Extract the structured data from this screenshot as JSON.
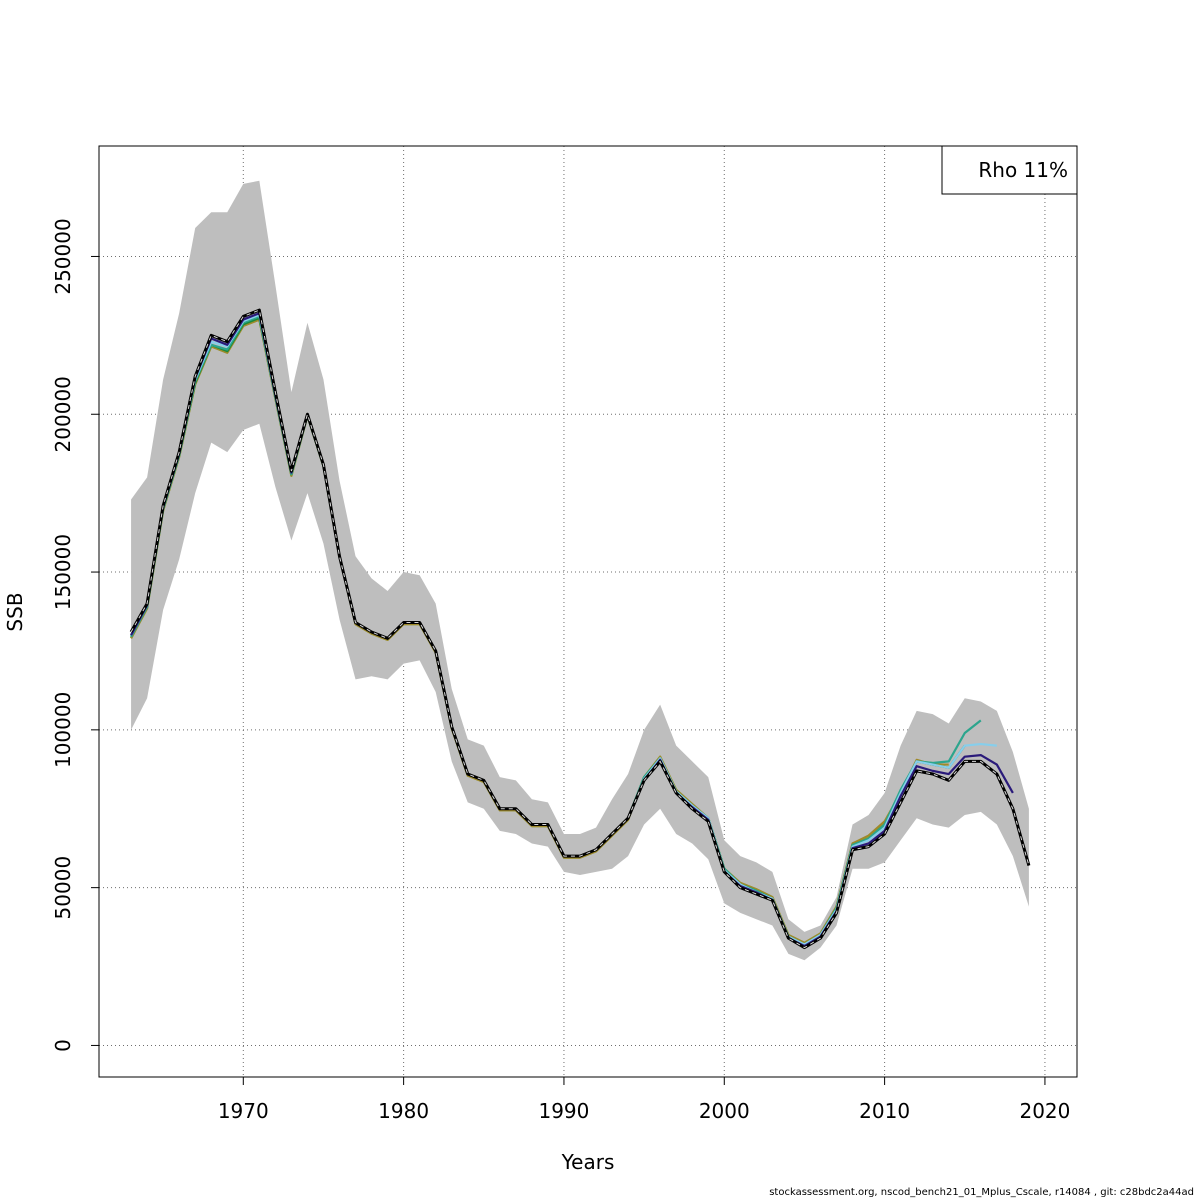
{
  "chart_data": {
    "type": "line",
    "title": "",
    "xlabel": "Years",
    "ylabel": "SSB",
    "xlim": [
      1961,
      2022
    ],
    "ylim": [
      -10000,
      285000
    ],
    "x_ticks": [
      "1970",
      "1980",
      "1990",
      "2000",
      "2010",
      "2020"
    ],
    "y_ticks": [
      "0",
      "50000",
      "100000",
      "150000",
      "200000",
      "250000"
    ],
    "grid": true,
    "legend": {
      "placement": "top-right",
      "text": "Rho 11%"
    },
    "colors": {
      "band": "#bebebe",
      "final": "#000000",
      "peel_1": "#2a1a7a",
      "peel_2": "#87ceeb",
      "peel_3": "#2ca58d",
      "peel_4": "#1b8a3a",
      "peel_5": "#a08a2a",
      "peel_6": "#7aa84a"
    },
    "confidence_band": {
      "x": [
        1963,
        1964,
        1965,
        1966,
        1967,
        1968,
        1969,
        1970,
        1971,
        1972,
        1973,
        1974,
        1975,
        1976,
        1977,
        1978,
        1979,
        1980,
        1981,
        1982,
        1983,
        1984,
        1985,
        1986,
        1987,
        1988,
        1989,
        1990,
        1991,
        1992,
        1993,
        1994,
        1995,
        1996,
        1997,
        1998,
        1999,
        2000,
        2001,
        2002,
        2003,
        2004,
        2005,
        2006,
        2007,
        2008,
        2009,
        2010,
        2011,
        2012,
        2013,
        2014,
        2015,
        2016,
        2017,
        2018,
        2019
      ],
      "upper": [
        173000,
        180000,
        211000,
        232000,
        259000,
        264000,
        264000,
        273000,
        274000,
        241000,
        207000,
        229000,
        211000,
        179000,
        155000,
        148000,
        144000,
        150000,
        149000,
        140000,
        113000,
        97000,
        95000,
        85000,
        84000,
        78000,
        77000,
        67000,
        67000,
        69000,
        78000,
        86000,
        100000,
        108000,
        95000,
        90000,
        85000,
        65000,
        60000,
        58000,
        55000,
        40000,
        36000,
        38000,
        47000,
        70000,
        73000,
        80000,
        95000,
        106000,
        105000,
        102000,
        110000,
        109000,
        106000,
        93000,
        75000
      ],
      "lower": [
        100000,
        110000,
        138000,
        154000,
        175000,
        191000,
        188000,
        195000,
        197000,
        177000,
        160000,
        175000,
        159000,
        135000,
        116000,
        117000,
        116000,
        121000,
        122000,
        112000,
        90000,
        77000,
        75000,
        68000,
        67000,
        64000,
        63000,
        55000,
        54000,
        55000,
        56000,
        60000,
        70000,
        75000,
        67000,
        64000,
        59000,
        45000,
        42000,
        40000,
        38000,
        29000,
        27000,
        31000,
        38000,
        56000,
        56000,
        58000,
        65000,
        72000,
        70000,
        69000,
        73000,
        74000,
        70000,
        60000,
        44000
      ]
    },
    "series": [
      {
        "x": [
          1963,
          1964,
          1965,
          1966,
          1967,
          1968,
          1969,
          1970,
          1971,
          1972,
          1973,
          1974,
          1975,
          1976,
          1977,
          1978,
          1979,
          1980,
          1981,
          1982,
          1983,
          1984,
          1985,
          1986,
          1987,
          1988,
          1989,
          1990,
          1991,
          1992,
          1993,
          1994,
          1995,
          1996,
          1997,
          1998,
          1999,
          2000,
          2001,
          2002,
          2003,
          2004,
          2005,
          2006,
          2007,
          2008,
          2009,
          2010,
          2011,
          2012,
          2013,
          2014,
          2015,
          2016,
          2017,
          2018,
          2019
        ],
        "values": [
          131000,
          140000,
          171000,
          188000,
          212000,
          225000,
          223000,
          231000,
          233000,
          207000,
          182000,
          200000,
          184000,
          155000,
          134000,
          131000,
          129000,
          134000,
          134000,
          125000,
          101000,
          86000,
          84000,
          75000,
          75000,
          70000,
          70000,
          60000,
          60000,
          62000,
          67000,
          72000,
          84000,
          90000,
          80000,
          75000,
          71000,
          55000,
          50000,
          48000,
          46000,
          34000,
          31000,
          34000,
          42000,
          62000,
          63000,
          67000,
          77000,
          87000,
          86000,
          84000,
          90000,
          90000,
          86000,
          75000,
          57000
        ]
      },
      {
        "x": [
          1963,
          1964,
          1965,
          1966,
          1967,
          1968,
          1969,
          1970,
          1971,
          1972,
          1973,
          1974,
          1975,
          1976,
          1977,
          1978,
          1979,
          1980,
          1981,
          1982,
          1983,
          1984,
          1985,
          1986,
          1987,
          1988,
          1989,
          1990,
          1991,
          1992,
          1993,
          1994,
          1995,
          1996,
          1997,
          1998,
          1999,
          2000,
          2001,
          2002,
          2003,
          2004,
          2005,
          2006,
          2007,
          2008,
          2009,
          2010,
          2011,
          2012,
          2013,
          2014,
          2015,
          2016,
          2017,
          2018
        ],
        "values": [
          130000,
          139500,
          170500,
          187500,
          211500,
          224000,
          222000,
          230000,
          232000,
          206000,
          181500,
          199800,
          183800,
          155000,
          134000,
          131000,
          129000,
          134000,
          134000,
          125000,
          101000,
          86000,
          84000,
          75000,
          75000,
          70000,
          70000,
          60000,
          60000,
          62000,
          67000,
          72000,
          84000,
          90500,
          80000,
          75500,
          71500,
          55000,
          50500,
          48500,
          46000,
          34000,
          31500,
          34500,
          42500,
          62500,
          64000,
          68000,
          79000,
          88500,
          87000,
          86000,
          91500,
          92000,
          89000,
          80000
        ]
      },
      {
        "x": [
          1963,
          1964,
          1965,
          1966,
          1967,
          1968,
          1969,
          1970,
          1971,
          1972,
          1973,
          1974,
          1975,
          1976,
          1977,
          1978,
          1979,
          1980,
          1981,
          1982,
          1983,
          1984,
          1985,
          1986,
          1987,
          1988,
          1989,
          1990,
          1991,
          1992,
          1993,
          1994,
          1995,
          1996,
          1997,
          1998,
          1999,
          2000,
          2001,
          2002,
          2003,
          2004,
          2005,
          2006,
          2007,
          2008,
          2009,
          2010,
          2011,
          2012,
          2013,
          2014,
          2015,
          2016,
          2017
        ],
        "values": [
          130000,
          139500,
          170500,
          187500,
          211000,
          223000,
          221500,
          229500,
          231500,
          206000,
          181500,
          199800,
          183800,
          155000,
          134000,
          131000,
          129000,
          134000,
          134000,
          125000,
          101000,
          86000,
          84000,
          75000,
          75000,
          70000,
          70000,
          60000,
          60000,
          62000,
          67000,
          72000,
          84500,
          91000,
          80500,
          76000,
          72000,
          55500,
          51000,
          48500,
          46500,
          34500,
          32000,
          35000,
          43000,
          63000,
          65000,
          69000,
          80000,
          90000,
          89000,
          88000,
          95000,
          95500,
          95000
        ]
      },
      {
        "x": [
          1963,
          1964,
          1965,
          1966,
          1967,
          1968,
          1969,
          1970,
          1971,
          1972,
          1973,
          1974,
          1975,
          1976,
          1977,
          1978,
          1979,
          1980,
          1981,
          1982,
          1983,
          1984,
          1985,
          1986,
          1987,
          1988,
          1989,
          1990,
          1991,
          1992,
          1993,
          1994,
          1995,
          1996,
          1997,
          1998,
          1999,
          2000,
          2001,
          2002,
          2003,
          2004,
          2005,
          2006,
          2007,
          2008,
          2009,
          2010,
          2011,
          2012,
          2013,
          2014,
          2015,
          2016
        ],
        "values": [
          129500,
          139000,
          170000,
          187000,
          210500,
          222000,
          220500,
          229000,
          231000,
          205500,
          181000,
          199700,
          183700,
          155000,
          134000,
          131000,
          129000,
          134000,
          134000,
          125000,
          101000,
          86000,
          84000,
          75000,
          75000,
          70000,
          70000,
          60000,
          60000,
          62000,
          67000,
          72000,
          85000,
          91000,
          80500,
          76000,
          72000,
          56000,
          51000,
          49000,
          46500,
          34500,
          32000,
          35000,
          43500,
          63500,
          65500,
          70000,
          81000,
          90000,
          89500,
          90000,
          99000,
          103000
        ]
      },
      {
        "x": [
          1963,
          1964,
          1965,
          1966,
          1967,
          1968,
          1969,
          1970,
          1971,
          1972,
          1973,
          1974,
          1975,
          1976,
          1977,
          1978,
          1979,
          1980,
          1981,
          1982,
          1983,
          1984,
          1985,
          1986,
          1987,
          1988,
          1989,
          1990,
          1991,
          1992,
          1993,
          1994,
          1995,
          1996,
          1997,
          1998,
          1999,
          2000,
          2001,
          2002,
          2003,
          2004,
          2005,
          2006,
          2007,
          2008,
          2009,
          2010,
          2011,
          2012,
          2013,
          2014,
          2015
        ],
        "values": [
          129500,
          139000,
          170000,
          187000,
          210000,
          222000,
          220000,
          228500,
          230500,
          205500,
          181000,
          199600,
          183600,
          155000,
          134000,
          131000,
          129000,
          134000,
          134000,
          125000,
          101000,
          86000,
          84000,
          75000,
          75000,
          70000,
          70000,
          60000,
          60000,
          62000,
          67000,
          72000,
          85000,
          91000,
          80500,
          76000,
          72000,
          56000,
          51000,
          49000,
          46500,
          34500,
          32000,
          35000,
          43500,
          63500,
          65500,
          70000,
          80500,
          90000,
          89000,
          88000,
          95000
        ]
      },
      {
        "x": [
          1963,
          1964,
          1965,
          1966,
          1967,
          1968,
          1969,
          1970,
          1971,
          1972,
          1973,
          1974,
          1975,
          1976,
          1977,
          1978,
          1979,
          1980,
          1981,
          1982,
          1983,
          1984,
          1985,
          1986,
          1987,
          1988,
          1989,
          1990,
          1991,
          1992,
          1993,
          1994,
          1995,
          1996,
          1997,
          1998,
          1999,
          2000,
          2001,
          2002,
          2003,
          2004,
          2005,
          2006,
          2007,
          2008,
          2009,
          2010,
          2011,
          2012,
          2013,
          2014
        ],
        "values": [
          129000,
          138500,
          169500,
          186500,
          209500,
          221500,
          219500,
          228000,
          230000,
          205000,
          180500,
          199500,
          183500,
          155000,
          133500,
          130500,
          128500,
          133500,
          133500,
          124500,
          100500,
          85500,
          83500,
          74500,
          74500,
          69500,
          69500,
          59500,
          59500,
          61500,
          66500,
          71500,
          85000,
          91500,
          81000,
          76500,
          72000,
          56000,
          51500,
          49500,
          47000,
          35000,
          32500,
          35500,
          44000,
          64000,
          66500,
          71000,
          80000,
          90500,
          89000,
          89000
        ]
      },
      {
        "x": [
          1963,
          1964,
          1965,
          1966,
          1967,
          1968,
          1969,
          1970,
          1971,
          1972,
          1973,
          1974,
          1975,
          1976,
          1977,
          1978,
          1979,
          1980,
          1981,
          1982,
          1983,
          1984,
          1985,
          1986,
          1987,
          1988,
          1989,
          1990,
          1991,
          1992,
          1993,
          1994,
          1995,
          1996,
          1997,
          1998,
          1999,
          2000,
          2001,
          2002,
          2003,
          2004,
          2005,
          2006,
          2007,
          2008,
          2009,
          2010,
          2011,
          2012,
          2013
        ],
        "values": [
          129000,
          138500,
          169500,
          186500,
          209500,
          221500,
          219500,
          228000,
          230000,
          205000,
          180500,
          199500,
          183500,
          155000,
          133500,
          130500,
          128500,
          133500,
          133500,
          124500,
          100500,
          85500,
          83500,
          74500,
          74500,
          69500,
          69500,
          59500,
          59500,
          61500,
          66500,
          71500,
          85000,
          91500,
          81000,
          76500,
          72000,
          56000,
          51500,
          49500,
          47000,
          35000,
          32500,
          35500,
          44000,
          64000,
          66000,
          70500,
          79500,
          90000,
          89500
        ]
      }
    ]
  },
  "footer": "stockassessment.org, nscod_bench21_01_Mplus_Cscale, r14084 , git: c28bdc2a44ad"
}
